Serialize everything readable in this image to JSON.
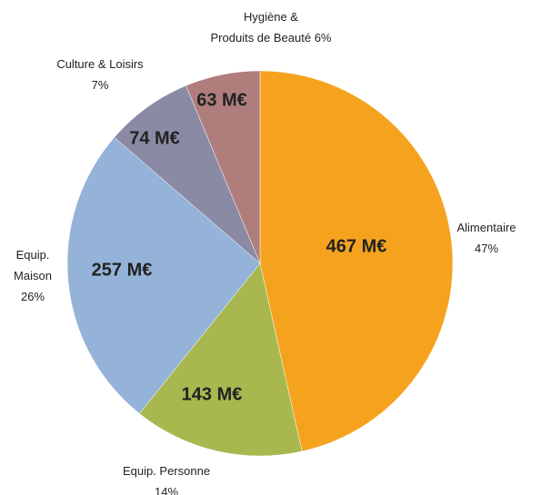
{
  "chart_data": {
    "type": "pie",
    "categories": [
      [
        "Alimentaire",
        "47%"
      ],
      [
        "Equip. Personne",
        "14%"
      ],
      [
        "Equip.",
        "Maison",
        "26%"
      ],
      [
        "Culture & Loisirs",
        "7%"
      ],
      [
        "Hygiène &",
        "Produits de Beauté 6%"
      ]
    ],
    "values": [
      467,
      143,
      257,
      74,
      63
    ],
    "value_labels": [
      "467 M€",
      "143 M€",
      "257 M€",
      "74 M€",
      "63 M€"
    ],
    "colors": [
      "#f5a31f",
      "#a8b84f",
      "#95b3d9",
      "#8a8aa5",
      "#b07d7d"
    ]
  }
}
